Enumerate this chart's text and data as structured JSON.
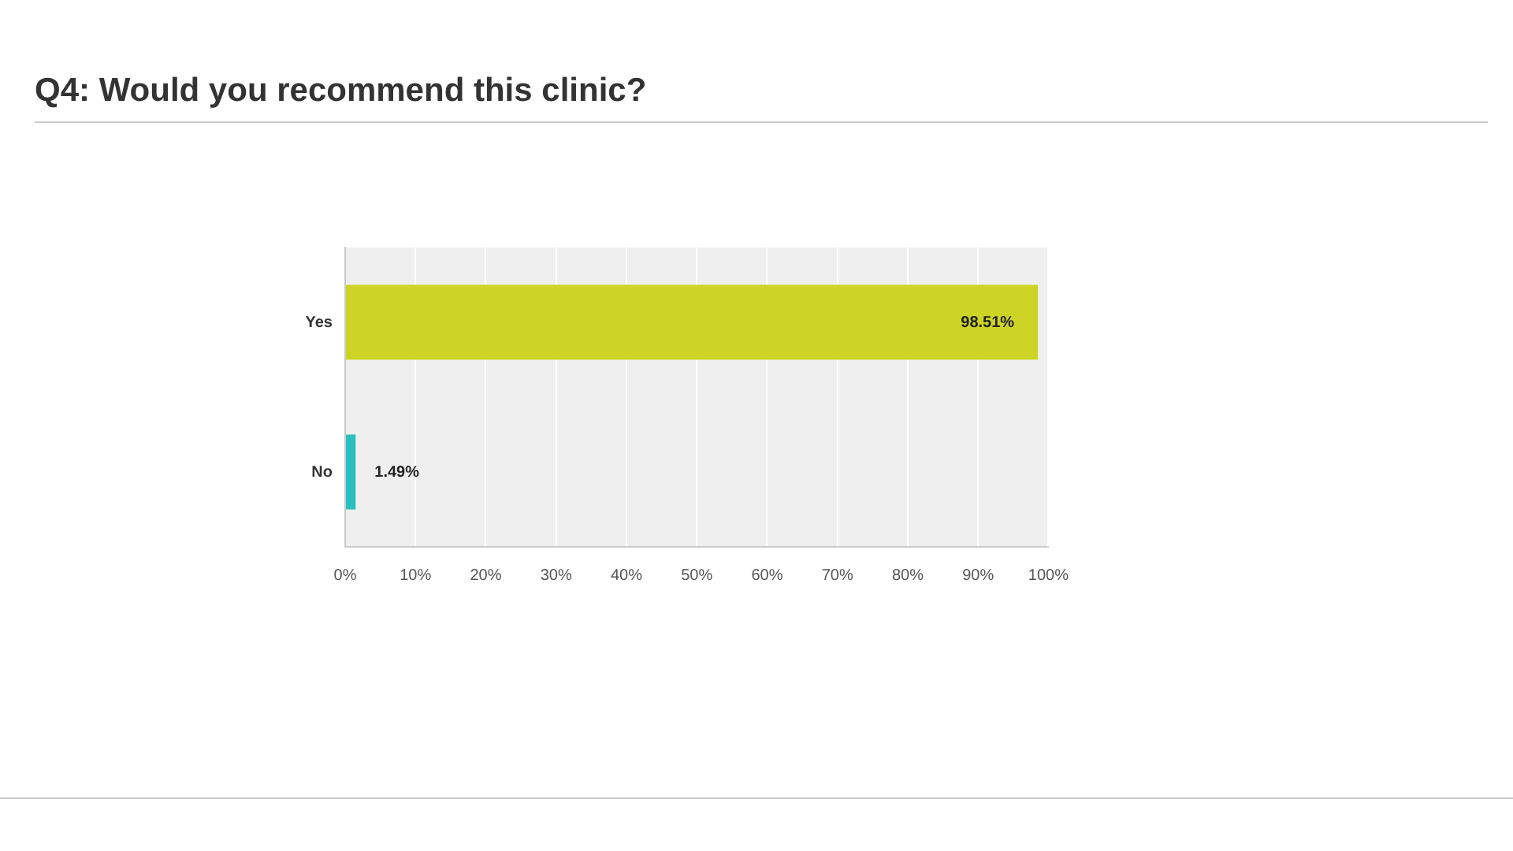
{
  "chart_data": {
    "type": "bar",
    "title": "Q4: Would you recommend this clinic?",
    "orientation": "horizontal",
    "categories": [
      "Yes",
      "No"
    ],
    "values": [
      98.51,
      1.49
    ],
    "colors": [
      "#cdd425",
      "#2bbfbf"
    ],
    "value_labels": [
      "98.51%",
      "1.49%"
    ],
    "xlim": [
      0,
      100
    ],
    "xticks": [
      {
        "value": 0,
        "label": "0%"
      },
      {
        "value": 10,
        "label": "10%"
      },
      {
        "value": 20,
        "label": "20%"
      },
      {
        "value": 30,
        "label": "30%"
      },
      {
        "value": 40,
        "label": "40%"
      },
      {
        "value": 50,
        "label": "50%"
      },
      {
        "value": 60,
        "label": "60%"
      },
      {
        "value": 70,
        "label": "70%"
      },
      {
        "value": 80,
        "label": "80%"
      },
      {
        "value": 90,
        "label": "90%"
      },
      {
        "value": 100,
        "label": "100%"
      }
    ],
    "grid": "x"
  }
}
